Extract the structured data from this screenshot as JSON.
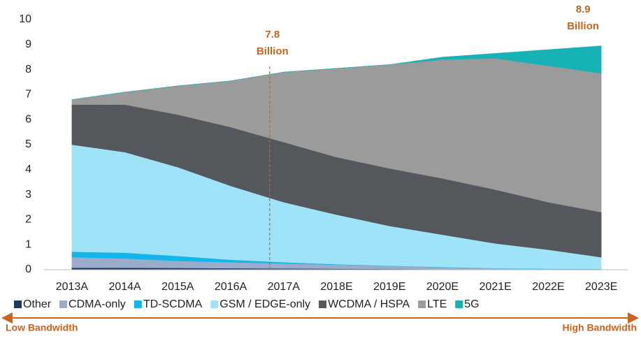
{
  "chart_data": {
    "type": "stacked_area",
    "categories": [
      "2013A",
      "2014A",
      "2015A",
      "2016A",
      "2017A",
      "2018E",
      "2019E",
      "2020E",
      "2021E",
      "2022E",
      "2023E"
    ],
    "series": [
      {
        "name": "Other",
        "color": "#1f3864",
        "values": [
          0.08,
          0.08,
          0.07,
          0.06,
          0.05,
          0.04,
          0.03,
          0.02,
          0.01,
          0.01,
          0.01
        ]
      },
      {
        "name": "CDMA-only",
        "color": "#9aaccc",
        "values": [
          0.42,
          0.37,
          0.28,
          0.24,
          0.2,
          0.16,
          0.12,
          0.08,
          0.04,
          0.02,
          0.01
        ]
      },
      {
        "name": "TD-SCDMA",
        "color": "#13b5ea",
        "values": [
          0.22,
          0.23,
          0.2,
          0.1,
          0.05,
          0.02,
          0.01,
          0.01,
          0.01,
          0.01,
          0.01
        ]
      },
      {
        "name": "GSM / EDGE-only",
        "color": "#9ee3f7",
        "values": [
          4.28,
          4.02,
          3.55,
          2.95,
          2.4,
          1.98,
          1.59,
          1.29,
          0.99,
          0.76,
          0.47
        ]
      },
      {
        "name": "WCDMA / HSPA",
        "color": "#54575c",
        "values": [
          1.6,
          1.9,
          2.1,
          2.35,
          2.4,
          2.3,
          2.3,
          2.25,
          2.15,
          1.9,
          1.8
        ]
      },
      {
        "name": "LTE",
        "color": "#9b9b9b",
        "values": [
          0.2,
          0.5,
          1.15,
          1.85,
          2.8,
          3.55,
          4.15,
          4.75,
          5.25,
          5.45,
          5.55
        ]
      },
      {
        "name": "5G",
        "color": "#17b2b5",
        "values": [
          0,
          0,
          0,
          0,
          0,
          0,
          0,
          0.1,
          0.2,
          0.65,
          1.1
        ]
      }
    ],
    "ylim": [
      0,
      10
    ],
    "yticks": [
      0,
      1,
      2,
      3,
      4,
      5,
      6,
      7,
      8,
      9,
      10
    ],
    "grid": false,
    "annotations": [
      {
        "value": 7.8,
        "text": "Billion"
      },
      {
        "value": 8.9,
        "text": "Billion"
      }
    ],
    "annotation_color": "#c8641e",
    "footer": {
      "left": "Low Bandwidth",
      "right": "High Bandwidth"
    }
  }
}
